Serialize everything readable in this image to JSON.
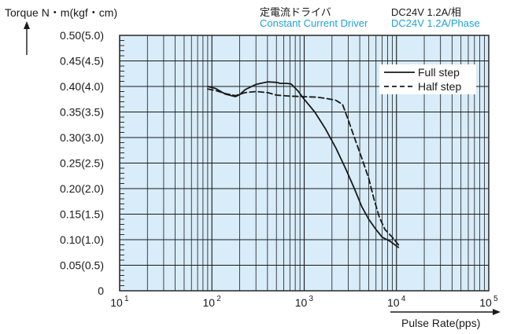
{
  "header": {
    "driver_jp": "定電流ドライバ",
    "driver_en": "Constant Current Driver",
    "spec_jp": "DC24V 1.2A/相",
    "spec_en": "DC24V 1.2A/Phase"
  },
  "colors": {
    "plot_bg": "#d8ecf9",
    "accent": "#1fa3d6",
    "grid": "#1a1a1a"
  },
  "chart_data": {
    "type": "line",
    "ylabel": "Torque N・m(kgf・cm)",
    "xlabel": "Pulse Rate(pps)",
    "x_scale": "log",
    "xlim": [
      10,
      100000
    ],
    "ylim": [
      0,
      0.5
    ],
    "grid": true,
    "legend_position": "top-right",
    "x_ticks": [
      {
        "value": 10,
        "base": "10",
        "exp": "1"
      },
      {
        "value": 100,
        "base": "10",
        "exp": "2"
      },
      {
        "value": 1000,
        "base": "10",
        "exp": "3"
      },
      {
        "value": 10000,
        "base": "10",
        "exp": "4"
      },
      {
        "value": 100000,
        "base": "10",
        "exp": "5"
      }
    ],
    "y_ticks": [
      {
        "value": 0,
        "label": "0"
      },
      {
        "value": 0.05,
        "label": "0.05(0.5)"
      },
      {
        "value": 0.1,
        "label": "0.10(1.0)"
      },
      {
        "value": 0.15,
        "label": "0.15(1.5)"
      },
      {
        "value": 0.2,
        "label": "0.20(2.0)"
      },
      {
        "value": 0.25,
        "label": "0.25(2.5)"
      },
      {
        "value": 0.3,
        "label": "0.30(3.0)"
      },
      {
        "value": 0.35,
        "label": "0.35(3.5)"
      },
      {
        "value": 0.4,
        "label": "0.40(4.0)"
      },
      {
        "value": 0.45,
        "label": "0.45(4.5)"
      },
      {
        "value": 0.5,
        "label": "0.50(5.0)"
      }
    ],
    "series": [
      {
        "name": "Full step",
        "style": "solid",
        "points": [
          [
            90,
            0.4
          ],
          [
            110,
            0.396
          ],
          [
            140,
            0.385
          ],
          [
            180,
            0.38
          ],
          [
            200,
            0.384
          ],
          [
            230,
            0.394
          ],
          [
            300,
            0.404
          ],
          [
            400,
            0.409
          ],
          [
            500,
            0.408
          ],
          [
            550,
            0.406
          ],
          [
            650,
            0.406
          ],
          [
            720,
            0.405
          ],
          [
            850,
            0.392
          ],
          [
            1000,
            0.375
          ],
          [
            1300,
            0.35
          ],
          [
            1700,
            0.317
          ],
          [
            2200,
            0.28
          ],
          [
            2800,
            0.24
          ],
          [
            3500,
            0.2
          ],
          [
            4200,
            0.165
          ],
          [
            5000,
            0.14
          ],
          [
            6000,
            0.12
          ],
          [
            7000,
            0.105
          ],
          [
            8500,
            0.097
          ],
          [
            10500,
            0.085
          ]
        ]
      },
      {
        "name": "Half step",
        "style": "dashed",
        "points": [
          [
            90,
            0.395
          ],
          [
            110,
            0.392
          ],
          [
            140,
            0.386
          ],
          [
            180,
            0.382
          ],
          [
            230,
            0.388
          ],
          [
            300,
            0.39
          ],
          [
            400,
            0.388
          ],
          [
            500,
            0.383
          ],
          [
            700,
            0.381
          ],
          [
            1000,
            0.38
          ],
          [
            1400,
            0.379
          ],
          [
            1800,
            0.376
          ],
          [
            2200,
            0.373
          ],
          [
            2600,
            0.365
          ],
          [
            3000,
            0.335
          ],
          [
            3500,
            0.3
          ],
          [
            4200,
            0.26
          ],
          [
            5000,
            0.22
          ],
          [
            5700,
            0.18
          ],
          [
            6500,
            0.145
          ],
          [
            7500,
            0.12
          ],
          [
            9000,
            0.105
          ],
          [
            10500,
            0.09
          ]
        ]
      }
    ]
  }
}
